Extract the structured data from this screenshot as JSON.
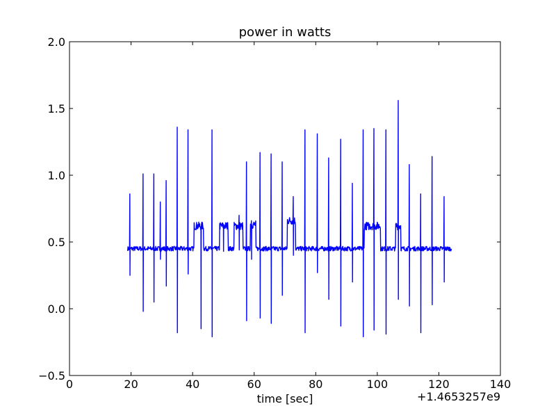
{
  "chart_data": {
    "type": "line",
    "title": "power in watts",
    "xlabel": "time [sec]",
    "ylabel": "",
    "x_offset_label": "+1.4653257e9",
    "xlim": [
      0,
      140
    ],
    "ylim": [
      -0.5,
      2.0
    ],
    "x_ticks": [
      0,
      20,
      40,
      60,
      80,
      100,
      120,
      140
    ],
    "x_tick_labels": [
      "0",
      "20",
      "40",
      "60",
      "80",
      "100",
      "120",
      "140"
    ],
    "y_ticks": [
      -0.5,
      0.0,
      0.5,
      1.0,
      1.5,
      2.0
    ],
    "y_tick_labels": [
      "−0.5",
      "0.0",
      "0.5",
      "1.0",
      "1.5",
      "2.0"
    ],
    "grid": false,
    "legend": "none",
    "line_color": "#0000ff",
    "baseline": 0.45,
    "x_range": [
      18.9,
      124.1
    ],
    "spikes": [
      {
        "x": 19.6,
        "high": 0.86,
        "low": 0.25
      },
      {
        "x": 23.9,
        "high": 1.01,
        "low": -0.02
      },
      {
        "x": 27.4,
        "high": 1.01,
        "low": 0.05
      },
      {
        "x": 29.5,
        "high": 0.8,
        "low": 0.37
      },
      {
        "x": 31.4,
        "high": 0.96,
        "low": 0.17
      },
      {
        "x": 35.0,
        "high": 1.36,
        "low": -0.18
      },
      {
        "x": 38.5,
        "high": 1.34,
        "low": 0.26
      },
      {
        "x": 42.7,
        "high": 0.61,
        "low": -0.15
      },
      {
        "x": 46.3,
        "high": 1.34,
        "low": -0.21
      },
      {
        "x": 50.0,
        "high": 0.63,
        "low": 0.43
      },
      {
        "x": 55.1,
        "high": 0.7,
        "low": 0.44
      },
      {
        "x": 57.5,
        "high": 1.1,
        "low": -0.09
      },
      {
        "x": 59.1,
        "high": 0.66,
        "low": 0.37
      },
      {
        "x": 61.9,
        "high": 1.17,
        "low": -0.07
      },
      {
        "x": 65.5,
        "high": 1.16,
        "low": -0.11
      },
      {
        "x": 69.1,
        "high": 1.1,
        "low": 0.1
      },
      {
        "x": 72.7,
        "high": 0.84,
        "low": 0.4
      },
      {
        "x": 76.5,
        "high": 1.34,
        "low": -0.18
      },
      {
        "x": 80.5,
        "high": 1.31,
        "low": 0.27
      },
      {
        "x": 84.2,
        "high": 1.13,
        "low": 0.07
      },
      {
        "x": 88.1,
        "high": 1.27,
        "low": -0.13
      },
      {
        "x": 91.9,
        "high": 0.94,
        "low": 0.2
      },
      {
        "x": 95.4,
        "high": 1.34,
        "low": -0.21
      },
      {
        "x": 98.9,
        "high": 1.35,
        "low": -0.16
      },
      {
        "x": 102.8,
        "high": 1.34,
        "low": -0.19
      },
      {
        "x": 106.8,
        "high": 1.56,
        "low": 0.07
      },
      {
        "x": 110.4,
        "high": 1.08,
        "low": 0.02
      },
      {
        "x": 114.1,
        "high": 0.86,
        "low": -0.18
      },
      {
        "x": 117.8,
        "high": 1.14,
        "low": 0.03
      },
      {
        "x": 121.7,
        "high": 0.84,
        "low": 0.2
      }
    ],
    "plateaus": [
      {
        "x0": 40.5,
        "x1": 43.5,
        "level": 0.62
      },
      {
        "x0": 48.8,
        "x1": 51.5,
        "level": 0.62
      },
      {
        "x0": 53.5,
        "x1": 56.3,
        "level": 0.62
      },
      {
        "x0": 58.8,
        "x1": 60.5,
        "level": 0.63
      },
      {
        "x0": 70.8,
        "x1": 73.4,
        "level": 0.66
      },
      {
        "x0": 95.8,
        "x1": 101.0,
        "level": 0.62
      },
      {
        "x0": 106.0,
        "x1": 107.6,
        "level": 0.62
      }
    ]
  }
}
